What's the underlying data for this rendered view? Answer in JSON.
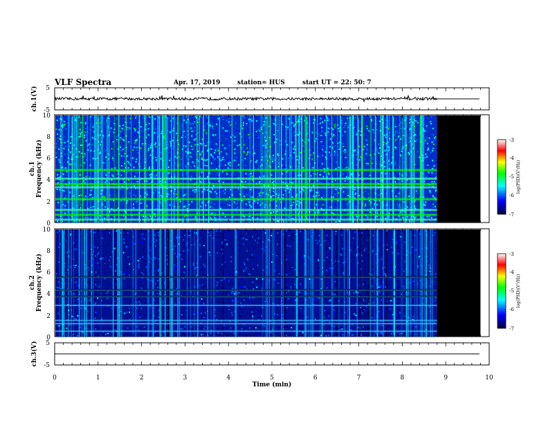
{
  "header": {
    "title": "VLF Spectra",
    "date": "Apr. 17, 2019",
    "station": "station= HUS",
    "start_time": "start  UT =   22: 50:  7"
  },
  "chart_data": [
    {
      "type": "line",
      "title": "",
      "ylabel": "ch.1(V)",
      "ylim": [
        -5,
        5
      ],
      "yticks": [
        "5",
        "-5"
      ],
      "data_end_min": 8.8,
      "trace": "noise around 0 V from 0 to 8.8 min, flat 0 V afterwards"
    },
    {
      "type": "heatmap",
      "title": "",
      "ylabel_lines": [
        "ch.1",
        "Frequency  (kHz)"
      ],
      "ylim": [
        0,
        10
      ],
      "yticks": [
        "0",
        "2",
        "4",
        "6",
        "8",
        "10"
      ],
      "data_end_min": 8.8,
      "no_data_region_min": [
        8.8,
        9.8
      ],
      "no_data_color": "#000000",
      "colorbar": {
        "label": "log(PSD)(V²/Hz)",
        "range": [
          -7,
          -3
        ],
        "ticks": [
          "-3",
          "-4",
          "-5",
          "-6",
          "-7"
        ],
        "colors": [
          "#000040",
          "#0000ff",
          "#00ffff",
          "#00ff00",
          "#ffff00",
          "#ff0000",
          "#ffffff"
        ]
      },
      "bands_khz": [
        0.3,
        0.75,
        1.2,
        2.2,
        3.3,
        3.6,
        4.1,
        4.9
      ],
      "level": "high"
    },
    {
      "type": "heatmap",
      "title": "",
      "ylabel_lines": [
        "ch.2",
        "Frequency  (kHz)"
      ],
      "ylim": [
        0,
        10
      ],
      "yticks": [
        "0",
        "2",
        "4",
        "6",
        "8",
        "10"
      ],
      "data_end_min": 8.8,
      "no_data_region_min": [
        8.8,
        9.8
      ],
      "no_data_color": "#000000",
      "colorbar": {
        "label": "log(PSD)(V²/Hz)",
        "range": [
          -7,
          -3
        ],
        "ticks": [
          "-3",
          "-4",
          "-5",
          "-6",
          "-7"
        ],
        "colors": [
          "#000040",
          "#0000ff",
          "#00ffff",
          "#00ff00",
          "#ffff00",
          "#ff0000",
          "#ffffff"
        ]
      },
      "bands_khz": [
        0.5,
        1.2,
        1.5,
        2.9,
        3.7,
        4.3,
        5.5
      ],
      "level": "low"
    },
    {
      "type": "line",
      "title": "",
      "ylabel": "ch.3(V)",
      "ylim": [
        -5,
        5
      ],
      "yticks": [
        "5",
        "-5"
      ],
      "trace": "flat 0 V for the whole interval"
    }
  ],
  "xaxis": {
    "label": "Time  (min)",
    "range": [
      0,
      10
    ],
    "ticks": [
      "0",
      "1",
      "2",
      "3",
      "4",
      "5",
      "6",
      "7",
      "8",
      "9",
      "10"
    ]
  }
}
